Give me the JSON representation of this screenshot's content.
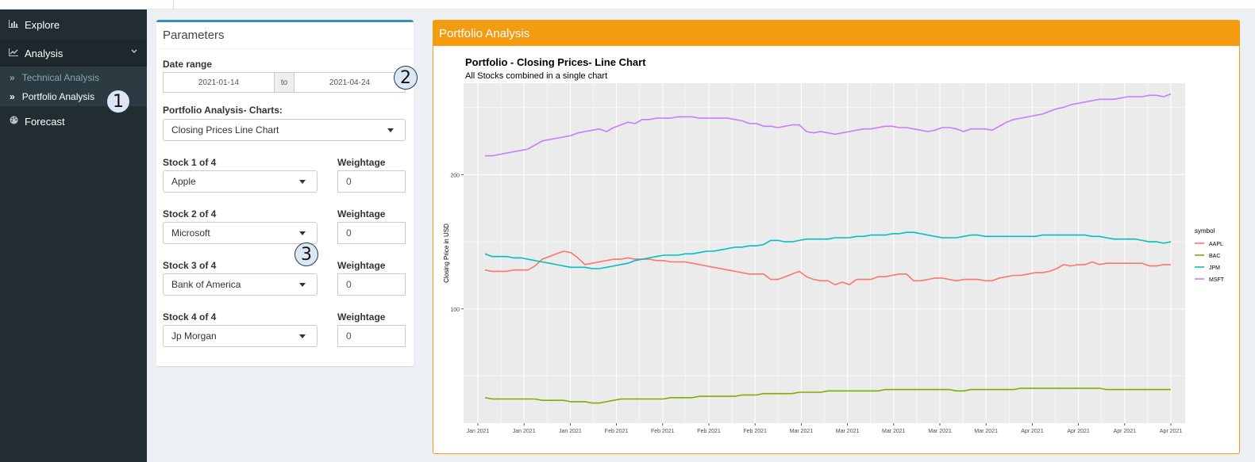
{
  "sidebar": {
    "explore": "Explore",
    "analysis": "Analysis",
    "technical": "Technical Analysis",
    "portfolio": "Portfolio Analysis",
    "forecast": "Forecast"
  },
  "callouts": [
    "1",
    "2",
    "3"
  ],
  "params": {
    "title": "Parameters",
    "date_label": "Date range",
    "date_start": "2021-01-14",
    "date_sep": "to",
    "date_end": "2021-04-24",
    "charts_label": "Portfolio Analysis- Charts:",
    "chart_select": "Closing Prices Line Chart",
    "stocks": [
      {
        "label": "Stock 1 of 4",
        "value": "Apple",
        "weight_label": "Weightage",
        "weight": "0"
      },
      {
        "label": "Stock 2 of 4",
        "value": "Microsoft",
        "weight_label": "Weightage",
        "weight": "0"
      },
      {
        "label": "Stock 3 of 4",
        "value": "Bank of America",
        "weight_label": "Weightage",
        "weight": "0"
      },
      {
        "label": "Stock 4 of 4",
        "value": "Jp Morgan",
        "weight_label": "Weightage",
        "weight": "0"
      }
    ]
  },
  "panel": {
    "title": "Portfolio Analysis"
  },
  "colors": {
    "accent": "#f39c12",
    "sidebar": "#222d32",
    "primary": "#3c8dbc",
    "plot_bg": "#ebebeb"
  },
  "chart_data": {
    "type": "line",
    "title": "Portfolio - Closing Prices- Line Chart",
    "subtitle": "All Stocks combined in a single chart",
    "ylabel": "Closing Price in USD",
    "xlabel": "",
    "ylim": [
      15,
      268
    ],
    "y_ticks": [
      100,
      200
    ],
    "x_tick_labels": [
      "Jan 2021",
      "Jan 2021",
      "Jan 2021",
      "Feb 2021",
      "Feb 2021",
      "Feb 2021",
      "Feb 2021",
      "Mar 2021",
      "Mar 2021",
      "Mar 2021",
      "Mar 2021",
      "Mar 2021",
      "Apr 2021",
      "Apr 2021",
      "Apr 2021",
      "Apr 2021"
    ],
    "x_range_days": [
      0,
      101
    ],
    "legend_title": "symbol",
    "legend_position": "right",
    "grid": true,
    "series": [
      {
        "name": "AAPL",
        "color": "#f8766d",
        "x": [
          3,
          4,
          5,
          6,
          7,
          8,
          9,
          10,
          11,
          12,
          13,
          14,
          15,
          16,
          17,
          18,
          19,
          20,
          21,
          22,
          23,
          24,
          25,
          26,
          27,
          28,
          29,
          30,
          31,
          32,
          33,
          34,
          35,
          36,
          37,
          38,
          39,
          40,
          41,
          42,
          43,
          44,
          45,
          46,
          47,
          48,
          49,
          50,
          51,
          52,
          53,
          54,
          55,
          56,
          57,
          58,
          59,
          60,
          61,
          62,
          63,
          64,
          65,
          66,
          67,
          68,
          69,
          70,
          71,
          72,
          73,
          74,
          75,
          76,
          77,
          78,
          79,
          80,
          81,
          82,
          83,
          84,
          85,
          86,
          87,
          88,
          89,
          90,
          91,
          92,
          93,
          94,
          95,
          96,
          97,
          98,
          99
        ],
        "y": [
          129,
          128,
          128,
          128,
          129,
          129,
          129,
          132,
          137,
          139,
          141,
          143,
          142,
          138,
          133,
          134,
          135,
          136,
          137,
          137,
          138,
          137,
          137,
          137,
          136,
          136,
          135,
          135,
          135,
          134,
          133,
          132,
          131,
          130,
          129,
          128,
          127,
          126,
          126,
          126,
          122,
          122,
          124,
          126,
          128,
          124,
          122,
          121,
          121,
          118,
          120,
          118,
          122,
          122,
          122,
          124,
          124,
          125,
          126,
          126,
          121,
          121,
          122,
          123,
          123,
          122,
          121,
          122,
          122,
          122,
          121,
          121,
          123,
          124,
          125,
          125,
          126,
          127,
          127,
          128,
          130,
          133,
          132,
          133,
          133,
          135,
          133,
          134,
          134,
          134,
          134,
          134,
          134,
          132,
          132,
          133,
          133
        ]
      },
      {
        "name": "BAC",
        "color": "#7cae00",
        "x": [
          3,
          4,
          5,
          6,
          7,
          8,
          9,
          10,
          11,
          12,
          13,
          14,
          15,
          16,
          17,
          18,
          19,
          20,
          21,
          22,
          23,
          24,
          25,
          26,
          27,
          28,
          29,
          30,
          31,
          32,
          33,
          34,
          35,
          36,
          37,
          38,
          39,
          40,
          41,
          42,
          43,
          44,
          45,
          46,
          47,
          48,
          49,
          50,
          51,
          52,
          53,
          54,
          55,
          56,
          57,
          58,
          59,
          60,
          61,
          62,
          63,
          64,
          65,
          66,
          67,
          68,
          69,
          70,
          71,
          72,
          73,
          74,
          75,
          76,
          77,
          78,
          79,
          80,
          81,
          82,
          83,
          84,
          85,
          86,
          87,
          88,
          89,
          90,
          91,
          92,
          93,
          94,
          95,
          96,
          97,
          98,
          99
        ],
        "y": [
          34,
          33,
          33,
          33,
          33,
          33,
          33,
          33,
          32,
          32,
          32,
          32,
          31,
          31,
          31,
          30,
          30,
          31,
          32,
          33,
          33,
          33,
          33,
          33,
          33,
          33,
          34,
          34,
          34,
          34,
          35,
          35,
          35,
          35,
          35,
          35,
          36,
          36,
          36,
          37,
          37,
          37,
          37,
          37,
          38,
          38,
          38,
          38,
          39,
          39,
          39,
          39,
          39,
          39,
          39,
          39,
          40,
          40,
          40,
          40,
          40,
          40,
          40,
          40,
          40,
          40,
          39,
          39,
          40,
          40,
          40,
          40,
          40,
          40,
          40,
          41,
          41,
          41,
          41,
          41,
          41,
          41,
          41,
          41,
          41,
          41,
          41,
          40,
          40,
          40,
          40,
          40,
          40,
          40,
          40,
          40,
          40
        ]
      },
      {
        "name": "JPM",
        "color": "#00bfc4",
        "x": [
          3,
          4,
          5,
          6,
          7,
          8,
          9,
          10,
          11,
          12,
          13,
          14,
          15,
          16,
          17,
          18,
          19,
          20,
          21,
          22,
          23,
          24,
          25,
          26,
          27,
          28,
          29,
          30,
          31,
          32,
          33,
          34,
          35,
          36,
          37,
          38,
          39,
          40,
          41,
          42,
          43,
          44,
          45,
          46,
          47,
          48,
          49,
          50,
          51,
          52,
          53,
          54,
          55,
          56,
          57,
          58,
          59,
          60,
          61,
          62,
          63,
          64,
          65,
          66,
          67,
          68,
          69,
          70,
          71,
          72,
          73,
          74,
          75,
          76,
          77,
          78,
          79,
          80,
          81,
          82,
          83,
          84,
          85,
          86,
          87,
          88,
          89,
          90,
          91,
          92,
          93,
          94,
          95,
          96,
          97,
          98,
          99
        ],
        "y": [
          141,
          139,
          139,
          139,
          138,
          138,
          137,
          136,
          135,
          134,
          133,
          132,
          131,
          131,
          131,
          130,
          130,
          131,
          132,
          133,
          134,
          136,
          137,
          138,
          139,
          140,
          140,
          140,
          141,
          141,
          142,
          143,
          143,
          144,
          145,
          146,
          146,
          147,
          147,
          148,
          151,
          151,
          150,
          150,
          151,
          152,
          152,
          152,
          152,
          153,
          153,
          153,
          154,
          154,
          155,
          155,
          155,
          156,
          156,
          157,
          157,
          156,
          155,
          154,
          153,
          153,
          153,
          154,
          155,
          155,
          154,
          154,
          154,
          154,
          154,
          154,
          154,
          154,
          155,
          155,
          155,
          155,
          155,
          155,
          155,
          154,
          154,
          153,
          152,
          152,
          152,
          152,
          151,
          150,
          150,
          149,
          150
        ]
      },
      {
        "name": "MSFT",
        "color": "#c77cff",
        "x": [
          3,
          4,
          5,
          6,
          7,
          8,
          9,
          10,
          11,
          12,
          13,
          14,
          15,
          16,
          17,
          18,
          19,
          20,
          21,
          22,
          23,
          24,
          25,
          26,
          27,
          28,
          29,
          30,
          31,
          32,
          33,
          34,
          35,
          36,
          37,
          38,
          39,
          40,
          41,
          42,
          43,
          44,
          45,
          46,
          47,
          48,
          49,
          50,
          51,
          52,
          53,
          54,
          55,
          56,
          57,
          58,
          59,
          60,
          61,
          62,
          63,
          64,
          65,
          66,
          67,
          68,
          69,
          70,
          71,
          72,
          73,
          74,
          75,
          76,
          77,
          78,
          79,
          80,
          81,
          82,
          83,
          84,
          85,
          86,
          87,
          88,
          89,
          90,
          91,
          92,
          93,
          94,
          95,
          96,
          97,
          98,
          99
        ],
        "y": [
          214,
          214,
          215,
          216,
          217,
          218,
          219,
          222,
          225,
          226,
          227,
          228,
          229,
          231,
          232,
          233,
          234,
          232,
          235,
          237,
          239,
          238,
          241,
          241,
          242,
          242,
          242,
          243,
          243,
          243,
          242,
          242,
          242,
          242,
          242,
          241,
          240,
          238,
          238,
          236,
          236,
          235,
          236,
          237,
          237,
          232,
          231,
          232,
          231,
          230,
          231,
          232,
          233,
          234,
          234,
          235,
          236,
          236,
          235,
          235,
          234,
          233,
          232,
          233,
          235,
          235,
          234,
          232,
          234,
          234,
          234,
          233,
          236,
          239,
          241,
          242,
          243,
          244,
          245,
          247,
          249,
          250,
          252,
          253,
          254,
          255,
          256,
          256,
          256,
          257,
          258,
          258,
          258,
          259,
          259,
          258,
          260
        ]
      }
    ]
  }
}
